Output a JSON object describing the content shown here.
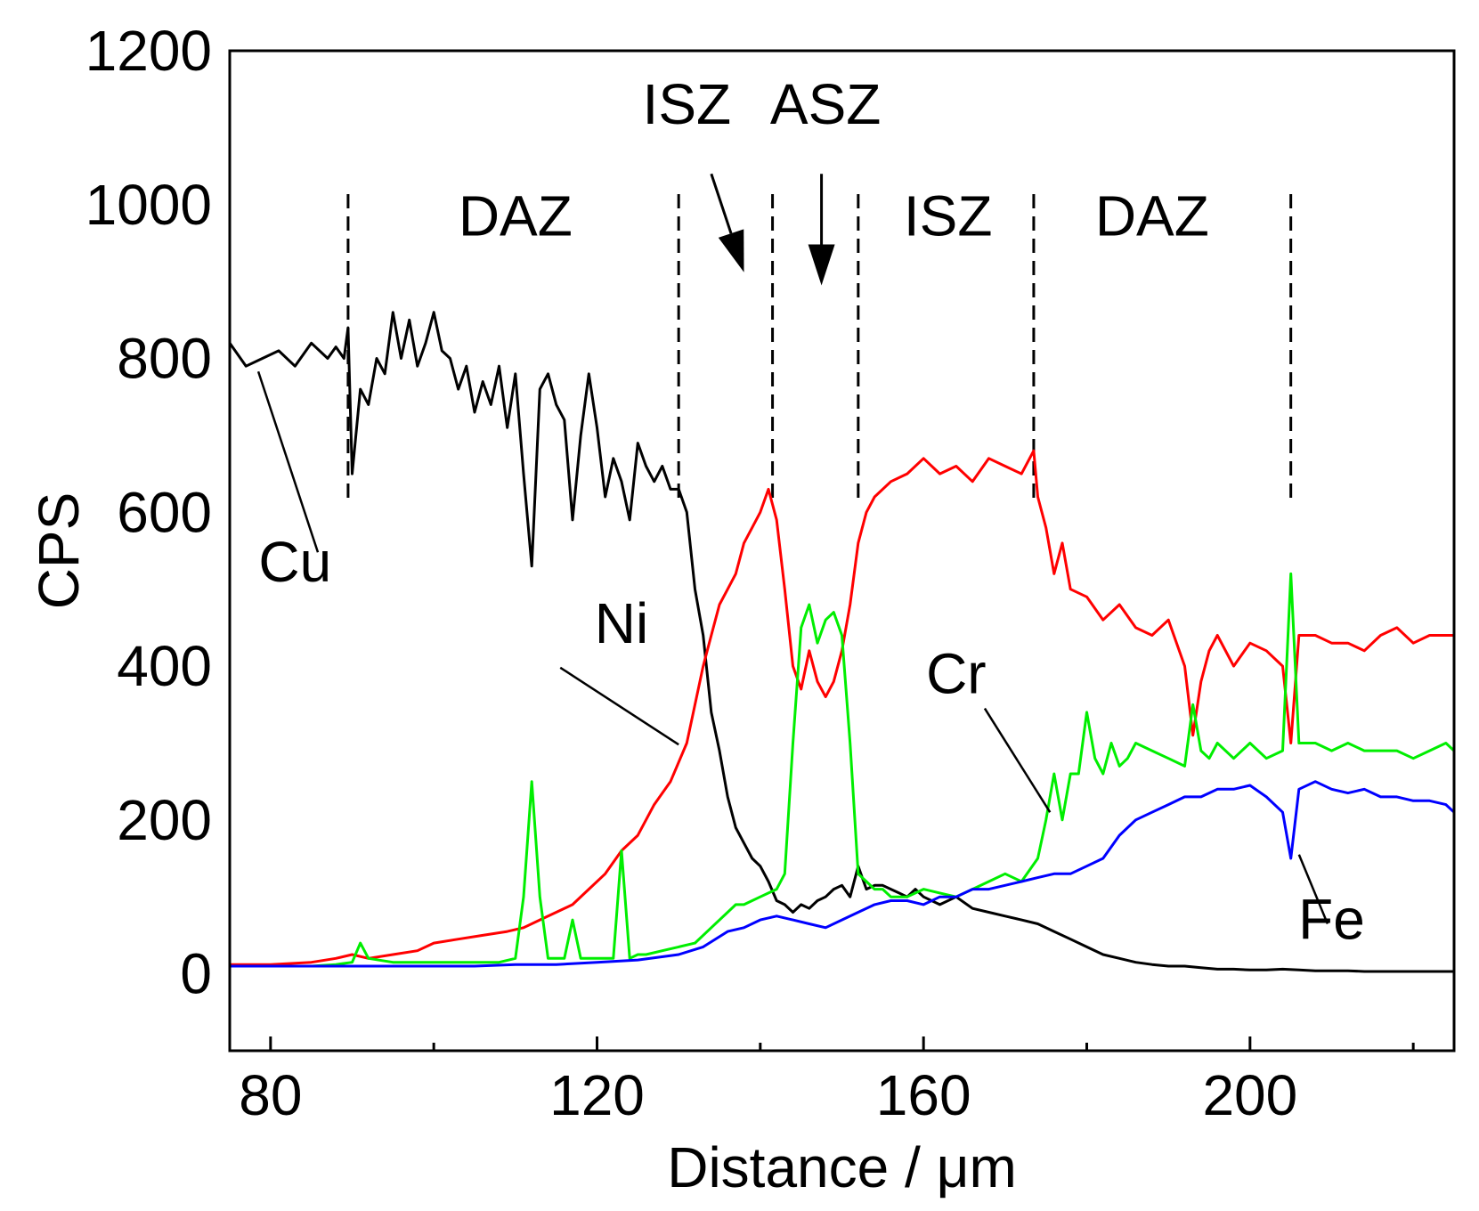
{
  "chart_data": {
    "type": "line",
    "title": "",
    "xlabel": "Distance / μm",
    "ylabel": "CPS",
    "xlim": [
      75,
      225
    ],
    "ylim": [
      -100,
      1200
    ],
    "xticks": [
      80,
      120,
      160,
      200
    ],
    "xticks_minor": [
      100,
      140,
      180,
      220
    ],
    "yticks": [
      0,
      200,
      400,
      600,
      800,
      1000,
      1200
    ],
    "grid": false,
    "legend": "none",
    "boundaries": [
      89.5,
      130,
      141.5,
      152,
      173.5,
      205
    ],
    "zones": [
      {
        "label": "DAZ",
        "x": 110,
        "y": 960
      },
      {
        "label": "ISZ",
        "x": 163,
        "y": 960
      },
      {
        "label": "DAZ",
        "x": 188,
        "y": 960
      },
      {
        "label": "ISZ",
        "x": 131,
        "y": 1105
      },
      {
        "label": "ASZ",
        "x": 148,
        "y": 1105
      }
    ],
    "arrows": [
      {
        "from": [
          134,
          1040
        ],
        "to": [
          138,
          912
        ]
      },
      {
        "from": [
          147.5,
          1040
        ],
        "to": [
          147.5,
          895
        ]
      }
    ],
    "series": [
      {
        "name": "Cu",
        "color": "#000000",
        "x": [
          75,
          77,
          79,
          81,
          83,
          85,
          87,
          88,
          89,
          89.5,
          90,
          91,
          92,
          93,
          94,
          95,
          96,
          97,
          98,
          99,
          100,
          101,
          102,
          103,
          104,
          105,
          106,
          107,
          108,
          109,
          110,
          111,
          112,
          113,
          114,
          115,
          116,
          117,
          118,
          119,
          120,
          121,
          122,
          123,
          124,
          125,
          126,
          127,
          128,
          129,
          130,
          131,
          132,
          133,
          134,
          135,
          136,
          137,
          138,
          139,
          140,
          141,
          142,
          143,
          144,
          145,
          146,
          147,
          148,
          149,
          150,
          151,
          152,
          153,
          154,
          155,
          156,
          157,
          158,
          159,
          160,
          162,
          164,
          166,
          168,
          170,
          172,
          174,
          176,
          178,
          180,
          182,
          184,
          186,
          188,
          190,
          192,
          194,
          196,
          198,
          200,
          202,
          204,
          206,
          208,
          210,
          212,
          214,
          216,
          218,
          220,
          222,
          224,
          225
        ],
        "values": [
          820,
          790,
          800,
          810,
          790,
          820,
          800,
          815,
          800,
          840,
          650,
          760,
          740,
          800,
          780,
          860,
          800,
          850,
          790,
          820,
          860,
          810,
          800,
          760,
          790,
          730,
          770,
          740,
          790,
          710,
          780,
          650,
          530,
          760,
          780,
          740,
          720,
          590,
          700,
          780,
          710,
          620,
          670,
          640,
          590,
          690,
          660,
          640,
          660,
          630,
          630,
          600,
          500,
          440,
          340,
          290,
          230,
          190,
          170,
          150,
          140,
          120,
          95,
          90,
          80,
          90,
          85,
          95,
          100,
          110,
          115,
          100,
          140,
          110,
          115,
          115,
          110,
          105,
          100,
          110,
          100,
          90,
          100,
          85,
          80,
          75,
          70,
          65,
          55,
          45,
          35,
          25,
          20,
          15,
          12,
          10,
          10,
          8,
          6,
          6,
          5,
          5,
          6,
          5,
          4,
          4,
          4,
          3,
          3,
          3,
          3,
          3,
          3,
          3
        ]
      },
      {
        "name": "Ni",
        "color": "#ff0000",
        "x": [
          75,
          80,
          85,
          88,
          90,
          92,
          95,
          98,
          100,
          103,
          106,
          109,
          111,
          113,
          115,
          117,
          119,
          121,
          123,
          125,
          127,
          129,
          131,
          132,
          133,
          134,
          135,
          136,
          137,
          138,
          139,
          140,
          141,
          142,
          143,
          144,
          145,
          146,
          147,
          148,
          149,
          150,
          151,
          152,
          153,
          154,
          156,
          158,
          160,
          162,
          164,
          166,
          168,
          170,
          172,
          173.5,
          174,
          175,
          176,
          177,
          178,
          180,
          182,
          184,
          186,
          188,
          190,
          192,
          193,
          194,
          195,
          196,
          198,
          200,
          202,
          204,
          205,
          206,
          208,
          210,
          212,
          214,
          216,
          218,
          220,
          222,
          224,
          225
        ],
        "values": [
          12,
          12,
          15,
          20,
          25,
          20,
          25,
          30,
          40,
          45,
          50,
          55,
          60,
          70,
          80,
          90,
          110,
          130,
          160,
          180,
          220,
          250,
          300,
          350,
          400,
          440,
          480,
          500,
          520,
          560,
          580,
          600,
          630,
          590,
          500,
          400,
          370,
          420,
          380,
          360,
          380,
          420,
          480,
          560,
          600,
          620,
          640,
          650,
          670,
          650,
          660,
          640,
          670,
          660,
          650,
          680,
          620,
          580,
          520,
          560,
          500,
          490,
          460,
          480,
          450,
          440,
          460,
          400,
          310,
          380,
          420,
          440,
          400,
          430,
          420,
          400,
          300,
          440,
          440,
          430,
          430,
          420,
          440,
          450,
          430,
          440,
          440,
          440
        ]
      },
      {
        "name": "Cr",
        "color": "#00ee00",
        "x": [
          75,
          80,
          85,
          88,
          90,
          91,
          92,
          95,
          100,
          105,
          108,
          110,
          111,
          112,
          113,
          114,
          116,
          117,
          118,
          120,
          122,
          123,
          124,
          125,
          126,
          128,
          130,
          132,
          134,
          136,
          137,
          138,
          139,
          140,
          141,
          142,
          143,
          144,
          145,
          146,
          147,
          148,
          149,
          150,
          151,
          152,
          153,
          154,
          155,
          156,
          158,
          160,
          162,
          164,
          166,
          168,
          170,
          172,
          174,
          175,
          176,
          177,
          178,
          179,
          180,
          181,
          182,
          183,
          184,
          185,
          186,
          188,
          190,
          192,
          193,
          194,
          195,
          196,
          198,
          200,
          202,
          204,
          205,
          206,
          208,
          210,
          212,
          214,
          216,
          218,
          220,
          222,
          224,
          225
        ],
        "values": [
          10,
          10,
          10,
          12,
          15,
          40,
          20,
          15,
          15,
          15,
          15,
          20,
          100,
          250,
          100,
          20,
          20,
          70,
          20,
          20,
          20,
          160,
          20,
          25,
          25,
          30,
          35,
          40,
          60,
          80,
          90,
          90,
          95,
          100,
          105,
          110,
          130,
          300,
          450,
          480,
          430,
          460,
          470,
          440,
          300,
          130,
          120,
          110,
          110,
          100,
          100,
          110,
          105,
          100,
          110,
          120,
          130,
          120,
          150,
          200,
          260,
          200,
          260,
          260,
          340,
          280,
          260,
          300,
          270,
          280,
          300,
          290,
          280,
          270,
          350,
          290,
          280,
          300,
          280,
          300,
          280,
          290,
          520,
          300,
          300,
          290,
          300,
          290,
          290,
          290,
          280,
          290,
          300,
          290
        ]
      },
      {
        "name": "Fe",
        "color": "#0000ff",
        "x": [
          75,
          80,
          85,
          90,
          95,
          100,
          105,
          110,
          115,
          120,
          125,
          130,
          133,
          136,
          138,
          140,
          142,
          144,
          146,
          148,
          150,
          152,
          154,
          156,
          158,
          160,
          162,
          164,
          166,
          168,
          170,
          172,
          174,
          176,
          178,
          180,
          182,
          184,
          186,
          188,
          190,
          192,
          194,
          196,
          198,
          200,
          202,
          204,
          205,
          206,
          208,
          210,
          212,
          214,
          216,
          218,
          220,
          222,
          224,
          225
        ],
        "values": [
          10,
          10,
          10,
          10,
          10,
          10,
          10,
          12,
          12,
          15,
          18,
          25,
          35,
          55,
          60,
          70,
          75,
          70,
          65,
          60,
          70,
          80,
          90,
          95,
          95,
          90,
          100,
          100,
          110,
          110,
          115,
          120,
          125,
          130,
          130,
          140,
          150,
          180,
          200,
          210,
          220,
          230,
          230,
          240,
          240,
          245,
          230,
          210,
          150,
          240,
          250,
          240,
          235,
          240,
          230,
          230,
          225,
          225,
          220,
          210
        ]
      }
    ],
    "series_labels": [
      {
        "text": "Cu",
        "x": 83,
        "y": 510,
        "lx1": 85.8,
        "ly1": 548,
        "lx2": 78.5,
        "ly2": 783
      },
      {
        "text": "Ni",
        "x": 123,
        "y": 430,
        "lx1": 115.5,
        "ly1": 398,
        "lx2": 130,
        "ly2": 298
      },
      {
        "text": "Cr",
        "x": 164,
        "y": 365,
        "lx1": 167.5,
        "ly1": 345,
        "lx2": 175.5,
        "ly2": 210
      },
      {
        "text": "Fe",
        "x": 210,
        "y": 45,
        "lx1": 209.5,
        "ly1": 65,
        "lx2": 206,
        "ly2": 155
      }
    ]
  }
}
